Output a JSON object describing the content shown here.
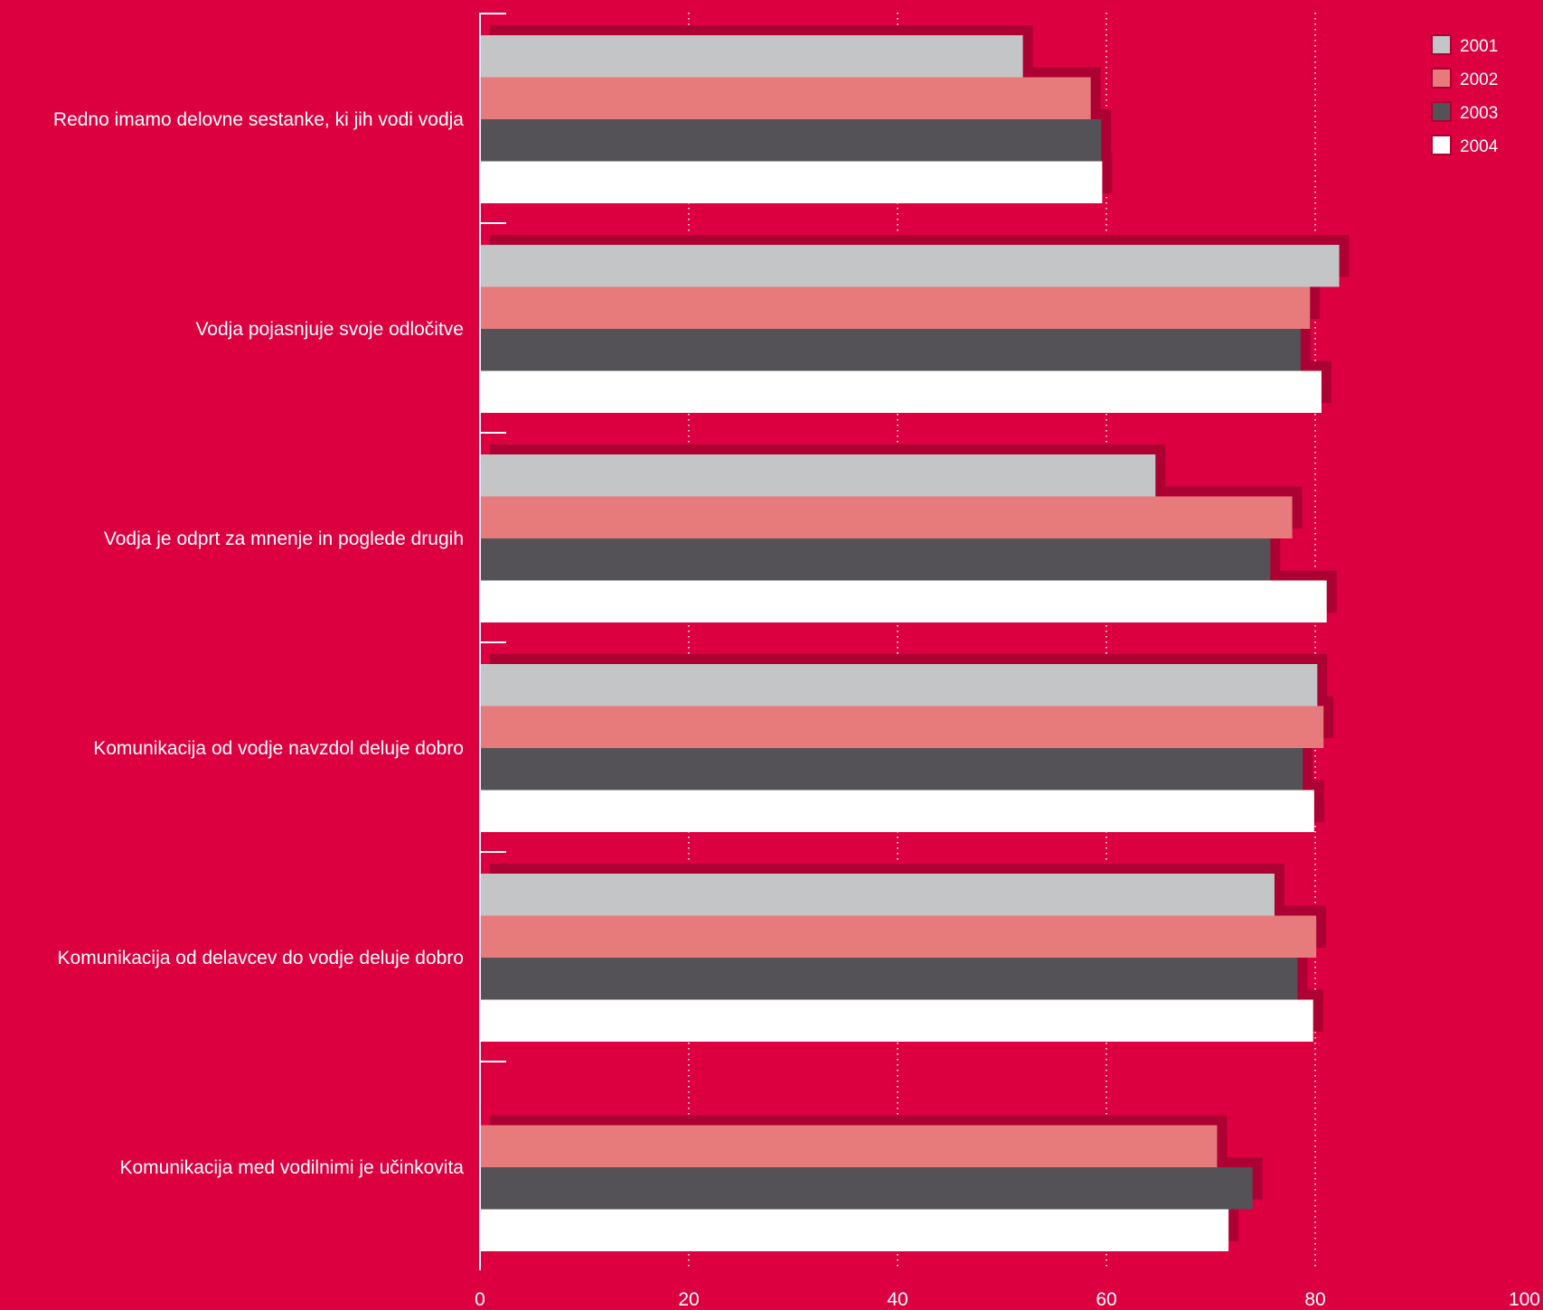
{
  "chart_data": {
    "type": "bar",
    "orientation": "horizontal",
    "categories": [
      "Redno imamo delovne sestanke, ki jih vodi vodja",
      "Vodja pojasnjuje svoje odločitve",
      "Vodja je odprt za mnenje in poglede drugih",
      "Komunikacija od vodje navzdol deluje dobro",
      "Komunikacija od delavcev do vodje deluje dobro",
      "Komunikacija med vodilnimi je učinkovita"
    ],
    "series": [
      {
        "name": "2001",
        "color": "#c4c5c7",
        "values": [
          52,
          82.3,
          64.7,
          80.2,
          76.1,
          null
        ]
      },
      {
        "name": "2002",
        "color": "#e77b7c",
        "values": [
          58.5,
          79.5,
          77.8,
          80.8,
          80.1,
          70.6
        ]
      },
      {
        "name": "2003",
        "color": "#545256",
        "values": [
          59.5,
          78.6,
          75.7,
          78.8,
          78.3,
          74
        ]
      },
      {
        "name": "2004",
        "color": "#ffffff",
        "values": [
          59.6,
          80.6,
          81.1,
          79.9,
          79.8,
          71.7
        ]
      }
    ],
    "xlim": [
      0,
      100
    ],
    "xticks": [
      "0",
      "20",
      "40",
      "60",
      "80",
      "100"
    ],
    "title": "",
    "xlabel": "",
    "ylabel": "",
    "grid": "vertical dotted",
    "legend": "top-right",
    "background": "#dc0041",
    "shadow_color": "#ad0033"
  }
}
